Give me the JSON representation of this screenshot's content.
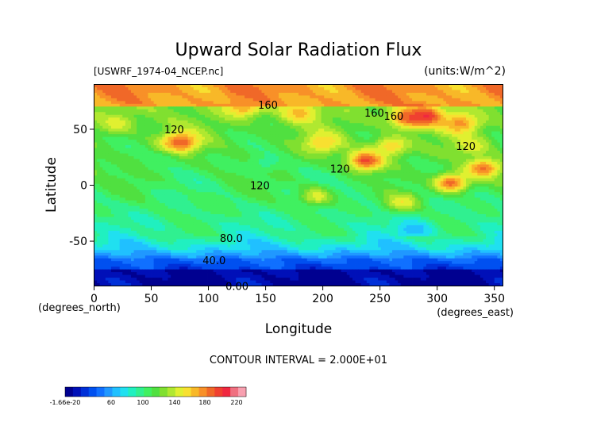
{
  "chart_data": {
    "type": "heatmap",
    "title": "Upward Solar Radiation Flux",
    "file_label": "[USWRF_1974-04_NCEP.nc]",
    "units_label": "(units:W/m^2)",
    "xlabel": "Longitude",
    "ylabel": "Latitude",
    "x_unit_label": "(degrees_east)",
    "y_unit_label": "(degrees_north)",
    "xlim": [
      0,
      357.5
    ],
    "ylim": [
      -90,
      90
    ],
    "x_ticks": [
      0,
      50,
      100,
      150,
      200,
      250,
      300,
      350
    ],
    "y_ticks": [
      -50,
      0,
      50
    ],
    "contour_interval_text": "CONTOUR INTERVAL = 2.000E+01",
    "contour_labels": [
      {
        "text": "160",
        "lon": 152,
        "lat": 72
      },
      {
        "text": "160",
        "lon": 245,
        "lat": 65
      },
      {
        "text": "160",
        "lon": 262,
        "lat": 62
      },
      {
        "text": "120",
        "lon": 70,
        "lat": 50
      },
      {
        "text": "120",
        "lon": 215,
        "lat": 15
      },
      {
        "text": "120",
        "lon": 325,
        "lat": 35
      },
      {
        "text": "120",
        "lon": 145,
        "lat": 0
      },
      {
        "text": "80.0",
        "lon": 120,
        "lat": -47
      },
      {
        "text": "40.0",
        "lon": 105,
        "lat": -67
      },
      {
        "text": "0.00",
        "lon": 125,
        "lat": -90
      }
    ],
    "colorbar": {
      "labels": [
        "-1.66e-20",
        "60",
        "100",
        "140",
        "180",
        "220"
      ],
      "colors": [
        "#000090",
        "#0010b8",
        "#0030d8",
        "#0050f0",
        "#1070ff",
        "#2098ff",
        "#20c0ff",
        "#20e0f0",
        "#20f0c0",
        "#30f090",
        "#40f060",
        "#50e040",
        "#80e030",
        "#b0e830",
        "#e0f030",
        "#f8e030",
        "#f8b828",
        "#f89028",
        "#f06828",
        "#f04030",
        "#f02840",
        "#f07080",
        "#f8a0b0"
      ]
    },
    "blobs": [
      {
        "lon": 290,
        "lat": 62,
        "value": 215
      },
      {
        "lon": 275,
        "lat": 60,
        "value": 195
      },
      {
        "lon": 320,
        "lat": 55,
        "value": 180
      },
      {
        "lon": 238,
        "lat": 22,
        "value": 205
      },
      {
        "lon": 312,
        "lat": 2,
        "value": 195
      },
      {
        "lon": 340,
        "lat": 15,
        "value": 190
      },
      {
        "lon": 75,
        "lat": 38,
        "value": 200
      },
      {
        "lon": 180,
        "lat": 65,
        "value": 170
      },
      {
        "lon": 130,
        "lat": 70,
        "value": 175
      },
      {
        "lon": 200,
        "lat": 38,
        "value": 165
      },
      {
        "lon": 260,
        "lat": 35,
        "value": 165
      },
      {
        "lon": 20,
        "lat": 55,
        "value": 150
      },
      {
        "lon": 60,
        "lat": 20,
        "value": 100
      },
      {
        "lon": 195,
        "lat": -10,
        "value": 150
      },
      {
        "lon": 270,
        "lat": -15,
        "value": 155
      },
      {
        "lon": 230,
        "lat": -5,
        "value": 100
      },
      {
        "lon": 280,
        "lat": -40,
        "value": 60
      },
      {
        "lon": 150,
        "lat": 20,
        "value": 95
      },
      {
        "lon": 330,
        "lat": 35,
        "value": 150
      },
      {
        "lon": 100,
        "lat": -15,
        "value": 110
      }
    ]
  }
}
